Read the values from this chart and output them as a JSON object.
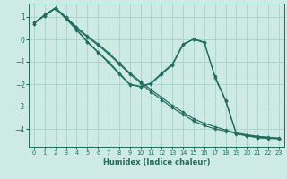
{
  "xlabel": "Humidex (Indice chaleur)",
  "bg_color": "#ceeae4",
  "grid_color": "#afd4cc",
  "line_color": "#1e6e62",
  "xlim": [
    -0.5,
    23.5
  ],
  "ylim": [
    -4.8,
    1.6
  ],
  "yticks": [
    -4,
    -3,
    -2,
    -1,
    0,
    1
  ],
  "xticks": [
    0,
    1,
    2,
    3,
    4,
    5,
    6,
    7,
    8,
    9,
    10,
    11,
    12,
    13,
    14,
    15,
    16,
    17,
    18,
    19,
    20,
    21,
    22,
    23
  ],
  "series": [
    [
      0.7,
      1.1,
      1.4,
      1.0,
      0.5,
      0.1,
      -0.25,
      -0.65,
      -1.1,
      -1.55,
      -1.95,
      -2.35,
      -2.7,
      -3.05,
      -3.35,
      -3.65,
      -3.85,
      -4.0,
      -4.1,
      -4.2,
      -4.28,
      -4.35,
      -4.38,
      -4.42
    ],
    [
      0.7,
      1.1,
      1.4,
      1.0,
      0.55,
      0.15,
      -0.2,
      -0.6,
      -1.05,
      -1.5,
      -1.88,
      -2.25,
      -2.6,
      -2.95,
      -3.25,
      -3.55,
      -3.75,
      -3.9,
      -4.05,
      -4.18,
      -4.26,
      -4.33,
      -4.37,
      -4.41
    ],
    [
      0.75,
      1.05,
      1.4,
      0.95,
      0.45,
      -0.1,
      -0.55,
      -1.0,
      -1.5,
      -2.0,
      -2.1,
      -1.95,
      -1.5,
      -1.1,
      -0.2,
      0.0,
      -0.15,
      -1.65,
      -2.7,
      -4.2,
      -4.3,
      -4.38,
      -4.41,
      -4.43
    ],
    [
      0.75,
      1.05,
      1.38,
      0.92,
      0.42,
      -0.12,
      -0.58,
      -1.05,
      -1.55,
      -2.02,
      -2.12,
      -1.98,
      -1.55,
      -1.15,
      -0.25,
      0.02,
      -0.12,
      -1.7,
      -2.75,
      -4.22,
      -4.31,
      -4.39,
      -4.42,
      -4.44
    ]
  ]
}
